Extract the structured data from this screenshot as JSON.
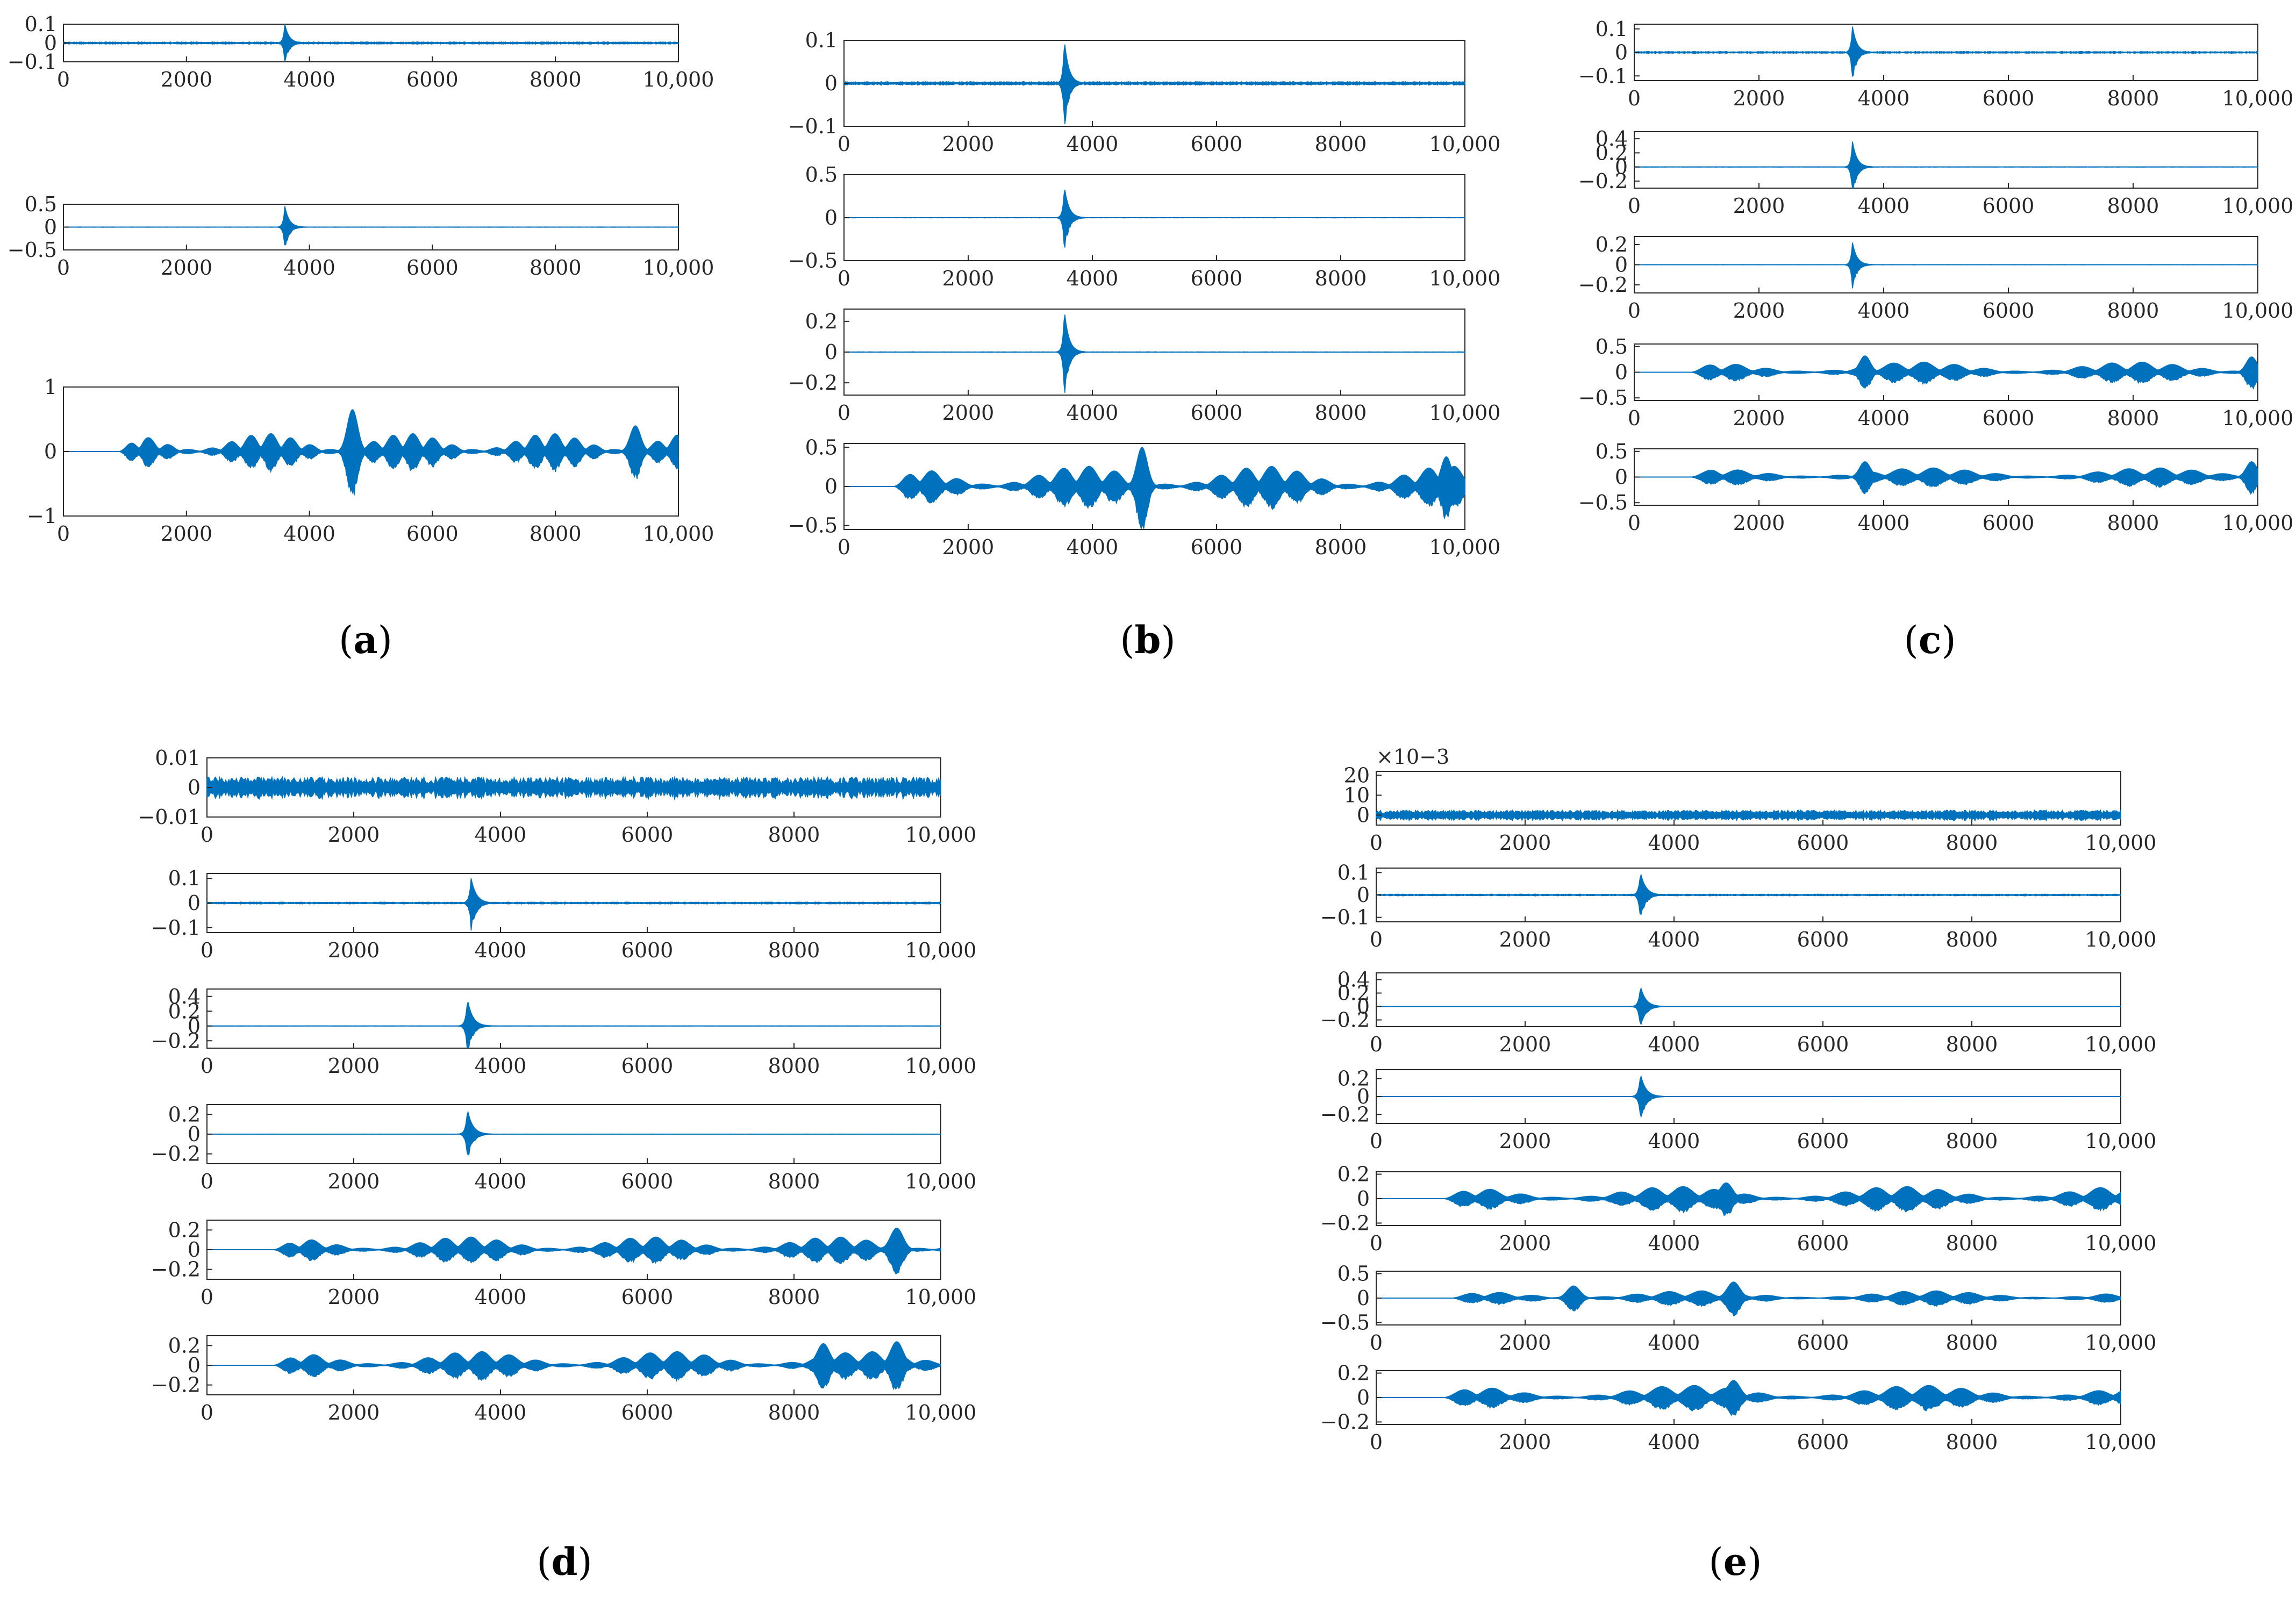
{
  "chart_data": [
    {
      "type": "line",
      "panel": "a",
      "caption_letter": "a",
      "subplots": [
        {
          "y_ticks": [
            "0.1",
            "0",
            "−0.1"
          ],
          "y_tick_values": [
            0.1,
            0,
            -0.1
          ],
          "ylim": [
            -0.1,
            0.1
          ],
          "noise": 0.006,
          "spikes": [
            {
              "pos": 3600,
              "amp": 0.1
            }
          ],
          "bursts": []
        },
        {
          "y_ticks": [
            "0.5",
            "0",
            "−0.5"
          ],
          "y_tick_values": [
            0.5,
            0,
            -0.5
          ],
          "ylim": [
            -0.5,
            0.5
          ],
          "noise": 0.005,
          "spikes": [
            {
              "pos": 3600,
              "amp": 0.46
            }
          ],
          "bursts": []
        },
        {
          "y_ticks": [
            "1",
            "0",
            "−1"
          ],
          "y_tick_values": [
            1,
            0,
            -1
          ],
          "ylim": [
            -1,
            1
          ],
          "noise": 0.0,
          "spikes": [],
          "bursts": [
            {
              "start": 900,
              "amp": 0.28,
              "period": 330,
              "peaks": [
                {
                  "pos": 4700,
                  "amp": 0.65
                },
                {
                  "pos": 9300,
                  "amp": 0.4
                }
              ]
            }
          ]
        }
      ],
      "x_ticks": [
        "0",
        "2000",
        "4000",
        "6000",
        "8000",
        "10,000"
      ],
      "x_tick_values": [
        0,
        2000,
        4000,
        6000,
        8000,
        10000
      ],
      "xlim": [
        0,
        10000
      ],
      "line_color": "#0072BD"
    },
    {
      "type": "line",
      "panel": "b",
      "caption_letter": "b",
      "subplots": [
        {
          "y_ticks": [
            "0.1",
            "0",
            "−0.1"
          ],
          "y_tick_values": [
            0.1,
            0,
            -0.1
          ],
          "ylim": [
            -0.1,
            0.1
          ],
          "noise": 0.004,
          "spikes": [
            {
              "pos": 3550,
              "amp": 0.1
            }
          ],
          "bursts": []
        },
        {
          "y_ticks": [
            "0.5",
            "0",
            "−0.5"
          ],
          "y_tick_values": [
            0.5,
            0,
            -0.5
          ],
          "ylim": [
            -0.5,
            0.5
          ],
          "noise": 0.003,
          "spikes": [
            {
              "pos": 3550,
              "amp": 0.36
            }
          ],
          "bursts": []
        },
        {
          "y_ticks": [
            "0.2",
            "0",
            "−0.2"
          ],
          "y_tick_values": [
            0.2,
            0,
            -0.2
          ],
          "ylim": [
            -0.28,
            0.28
          ],
          "noise": 0.002,
          "spikes": [
            {
              "pos": 3550,
              "amp": 0.27
            }
          ],
          "bursts": []
        },
        {
          "y_ticks": [
            "0.5",
            "0",
            "−0.5"
          ],
          "y_tick_values": [
            0.5,
            0,
            -0.5
          ],
          "ylim": [
            -0.55,
            0.55
          ],
          "noise": 0.0,
          "spikes": [],
          "bursts": [
            {
              "start": 800,
              "amp": 0.26,
              "period": 420,
              "peaks": [
                {
                  "pos": 4800,
                  "amp": 0.5
                },
                {
                  "pos": 9700,
                  "amp": 0.38
                }
              ]
            }
          ]
        }
      ],
      "x_ticks": [
        "0",
        "2000",
        "4000",
        "6000",
        "8000",
        "10,000"
      ],
      "x_tick_values": [
        0,
        2000,
        4000,
        6000,
        8000,
        10000
      ],
      "xlim": [
        0,
        10000
      ],
      "line_color": "#0072BD"
    },
    {
      "type": "line",
      "panel": "c",
      "caption_letter": "c",
      "subplots": [
        {
          "y_ticks": [
            "0.1",
            "0",
            "−0.1"
          ],
          "y_tick_values": [
            0.1,
            0,
            -0.1
          ],
          "ylim": [
            -0.12,
            0.12
          ],
          "noise": 0.004,
          "spikes": [
            {
              "pos": 3500,
              "amp": 0.11
            }
          ],
          "bursts": []
        },
        {
          "y_ticks": [
            "0.4",
            "0.2",
            "0",
            "−0.2"
          ],
          "y_tick_values": [
            0.4,
            0.2,
            0,
            -0.2
          ],
          "ylim": [
            -0.3,
            0.5
          ],
          "noise": 0.003,
          "spikes": [
            {
              "pos": 3500,
              "amp": 0.36
            }
          ],
          "bursts": []
        },
        {
          "y_ticks": [
            "0.2",
            "0",
            "−0.2"
          ],
          "y_tick_values": [
            0.2,
            0,
            -0.2
          ],
          "ylim": [
            -0.28,
            0.28
          ],
          "noise": 0.002,
          "spikes": [
            {
              "pos": 3500,
              "amp": 0.22
            }
          ],
          "bursts": []
        },
        {
          "y_ticks": [
            "0.5",
            "0",
            "−0.5"
          ],
          "y_tick_values": [
            0.5,
            0,
            -0.5
          ],
          "ylim": [
            -0.55,
            0.55
          ],
          "noise": 0.0,
          "spikes": [],
          "bursts": [
            {
              "start": 900,
              "amp": 0.2,
              "period": 500,
              "peaks": [
                {
                  "pos": 3700,
                  "amp": 0.32
                },
                {
                  "pos": 9900,
                  "amp": 0.3
                }
              ]
            }
          ]
        },
        {
          "y_ticks": [
            "0.5",
            "0",
            "−0.5"
          ],
          "y_tick_values": [
            0.5,
            0,
            -0.5
          ],
          "ylim": [
            -0.55,
            0.55
          ],
          "noise": 0.0,
          "spikes": [],
          "bursts": [
            {
              "start": 900,
              "amp": 0.18,
              "period": 520,
              "peaks": [
                {
                  "pos": 3700,
                  "amp": 0.3
                },
                {
                  "pos": 9900,
                  "amp": 0.3
                }
              ]
            }
          ]
        }
      ],
      "x_ticks": [
        "0",
        "2000",
        "4000",
        "6000",
        "8000",
        "10,000"
      ],
      "x_tick_values": [
        0,
        2000,
        4000,
        6000,
        8000,
        10000
      ],
      "xlim": [
        0,
        10000
      ],
      "line_color": "#0072BD"
    },
    {
      "type": "line",
      "panel": "d",
      "caption_letter": "d",
      "subplots": [
        {
          "y_ticks": [
            "0.01",
            "0",
            "−0.01"
          ],
          "y_tick_values": [
            0.01,
            0,
            -0.01
          ],
          "ylim": [
            -0.01,
            0.01
          ],
          "noise": 0.0035,
          "spikes": [],
          "bursts": []
        },
        {
          "y_ticks": [
            "0.1",
            "0",
            "−0.1"
          ],
          "y_tick_values": [
            0.1,
            0,
            -0.1
          ],
          "ylim": [
            -0.12,
            0.12
          ],
          "noise": 0.004,
          "spikes": [
            {
              "pos": 3600,
              "amp": 0.1
            }
          ],
          "bursts": []
        },
        {
          "y_ticks": [
            "0.4",
            "0.2",
            "0",
            "−0.2"
          ],
          "y_tick_values": [
            0.4,
            0.2,
            0,
            -0.2
          ],
          "ylim": [
            -0.3,
            0.5
          ],
          "noise": 0.002,
          "spikes": [
            {
              "pos": 3550,
              "amp": 0.36
            }
          ],
          "bursts": []
        },
        {
          "y_ticks": [
            "0.2",
            "0",
            "−0.2"
          ],
          "y_tick_values": [
            0.2,
            0,
            -0.2
          ],
          "ylim": [
            -0.3,
            0.3
          ],
          "noise": 0.002,
          "spikes": [
            {
              "pos": 3550,
              "amp": 0.25
            }
          ],
          "bursts": []
        },
        {
          "y_ticks": [
            "0.2",
            "0",
            "−0.2"
          ],
          "y_tick_values": [
            0.2,
            0,
            -0.2
          ],
          "ylim": [
            -0.3,
            0.3
          ],
          "noise": 0.0,
          "spikes": [],
          "bursts": [
            {
              "start": 900,
              "amp": 0.13,
              "period": 360,
              "peaks": [
                {
                  "pos": 9400,
                  "amp": 0.22
                }
              ]
            }
          ]
        },
        {
          "y_ticks": [
            "0.2",
            "0",
            "−0.2"
          ],
          "y_tick_values": [
            0.2,
            0,
            -0.2
          ],
          "ylim": [
            -0.3,
            0.3
          ],
          "noise": 0.0,
          "spikes": [],
          "bursts": [
            {
              "start": 900,
              "amp": 0.14,
              "period": 380,
              "peaks": [
                {
                  "pos": 8400,
                  "amp": 0.22
                },
                {
                  "pos": 9400,
                  "amp": 0.24
                }
              ]
            }
          ]
        }
      ],
      "x_ticks": [
        "0",
        "2000",
        "4000",
        "6000",
        "8000",
        "10,000"
      ],
      "x_tick_values": [
        0,
        2000,
        4000,
        6000,
        8000,
        10000
      ],
      "xlim": [
        0,
        10000
      ],
      "line_color": "#0072BD"
    },
    {
      "type": "line",
      "panel": "e",
      "caption_letter": "e",
      "exponent_label": "×10−3",
      "subplots": [
        {
          "y_ticks": [
            "20",
            "10",
            "0"
          ],
          "y_tick_values": [
            20,
            10,
            0
          ],
          "ylim": [
            -5,
            22
          ],
          "noise": 2.5,
          "spikes": [],
          "bursts": []
        },
        {
          "y_ticks": [
            "0.1",
            "0",
            "−0.1"
          ],
          "y_tick_values": [
            0.1,
            0,
            -0.1
          ],
          "ylim": [
            -0.12,
            0.12
          ],
          "noise": 0.004,
          "spikes": [
            {
              "pos": 3550,
              "amp": 0.1
            }
          ],
          "bursts": []
        },
        {
          "y_ticks": [
            "0.4",
            "0.2",
            "0",
            "−0.2"
          ],
          "y_tick_values": [
            0.4,
            0.2,
            0,
            -0.2
          ],
          "ylim": [
            -0.3,
            0.5
          ],
          "noise": 0.002,
          "spikes": [
            {
              "pos": 3550,
              "amp": 0.3
            }
          ],
          "bursts": []
        },
        {
          "y_ticks": [
            "0.2",
            "0",
            "−0.2"
          ],
          "y_tick_values": [
            0.2,
            0,
            -0.2
          ],
          "ylim": [
            -0.3,
            0.3
          ],
          "noise": 0.002,
          "spikes": [
            {
              "pos": 3550,
              "amp": 0.25
            }
          ],
          "bursts": []
        },
        {
          "y_ticks": [
            "0.2",
            "0",
            "−0.2"
          ],
          "y_tick_values": [
            0.2,
            0,
            -0.2
          ],
          "ylim": [
            -0.22,
            0.22
          ],
          "noise": 0.0,
          "spikes": [],
          "bursts": [
            {
              "start": 900,
              "amp": 0.1,
              "period": 430,
              "peaks": [
                {
                  "pos": 4700,
                  "amp": 0.13
                }
              ]
            }
          ]
        },
        {
          "y_ticks": [
            "0.5",
            "0",
            "−0.5"
          ],
          "y_tick_values": [
            0.5,
            0,
            -0.5
          ],
          "ylim": [
            -0.55,
            0.55
          ],
          "noise": 0.0,
          "spikes": [],
          "bursts": [
            {
              "start": 1000,
              "amp": 0.15,
              "period": 450,
              "peaks": [
                {
                  "pos": 2650,
                  "amp": 0.25
                },
                {
                  "pos": 4800,
                  "amp": 0.33
                }
              ]
            }
          ]
        },
        {
          "y_ticks": [
            "0.2",
            "0",
            "−0.2"
          ],
          "y_tick_values": [
            0.2,
            0,
            -0.2
          ],
          "ylim": [
            -0.22,
            0.22
          ],
          "noise": 0.0,
          "spikes": [],
          "bursts": [
            {
              "start": 900,
              "amp": 0.1,
              "period": 450,
              "peaks": [
                {
                  "pos": 4800,
                  "amp": 0.14
                }
              ]
            }
          ]
        }
      ],
      "x_ticks": [
        "0",
        "2000",
        "4000",
        "6000",
        "8000",
        "10,000"
      ],
      "x_tick_values": [
        0,
        2000,
        4000,
        6000,
        8000,
        10000
      ],
      "xlim": [
        0,
        10000
      ],
      "line_color": "#0072BD"
    }
  ]
}
